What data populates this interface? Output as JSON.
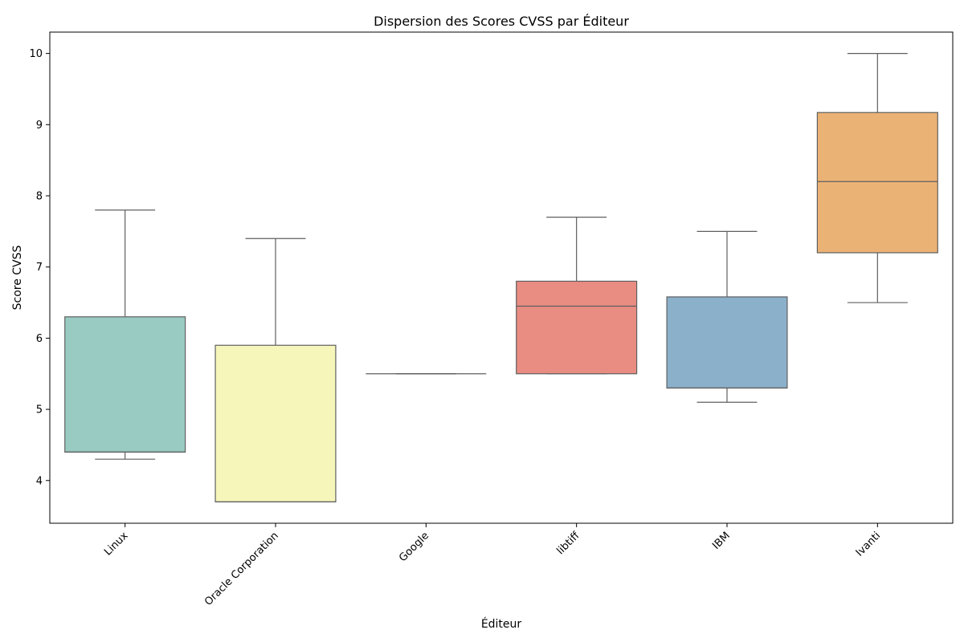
{
  "chart_data": {
    "type": "box",
    "title": "Dispersion des Scores CVSS par Éditeur",
    "xlabel": "Éditeur",
    "ylabel": "Score CVSS",
    "ylim": [
      3.4,
      10.3
    ],
    "yticks": [
      4,
      5,
      6,
      7,
      8,
      9,
      10
    ],
    "grid": false,
    "categories": [
      "Linux",
      "Oracle Corporation",
      "Google",
      "libtiff",
      "IBM",
      "Ivanti"
    ],
    "boxes": [
      {
        "category": "Linux",
        "whisker_low": 4.3,
        "q1": 4.4,
        "median": 4.4,
        "q3": 6.3,
        "whisker_high": 7.8,
        "color": "#99cbc3"
      },
      {
        "category": "Oracle Corporation",
        "whisker_low": 3.7,
        "q1": 3.7,
        "median": 3.7,
        "q3": 5.9,
        "whisker_high": 7.4,
        "color": "#f6f6bb"
      },
      {
        "category": "Google",
        "whisker_low": 5.5,
        "q1": 5.5,
        "median": 5.5,
        "q3": 5.5,
        "whisker_high": 5.5,
        "color": "#c4c1d9"
      },
      {
        "category": "libtiff",
        "whisker_low": 5.5,
        "q1": 5.5,
        "median": 6.45,
        "q3": 6.8,
        "whisker_high": 7.7,
        "color": "#e98c82"
      },
      {
        "category": "IBM",
        "whisker_low": 5.1,
        "q1": 5.3,
        "median": 5.3,
        "q3": 6.58,
        "whisker_high": 7.5,
        "color": "#8bb0ca"
      },
      {
        "category": "Ivanti",
        "whisker_low": 6.5,
        "q1": 7.2,
        "median": 8.2,
        "q3": 9.17,
        "whisker_high": 10.0,
        "color": "#ebb275"
      }
    ]
  }
}
